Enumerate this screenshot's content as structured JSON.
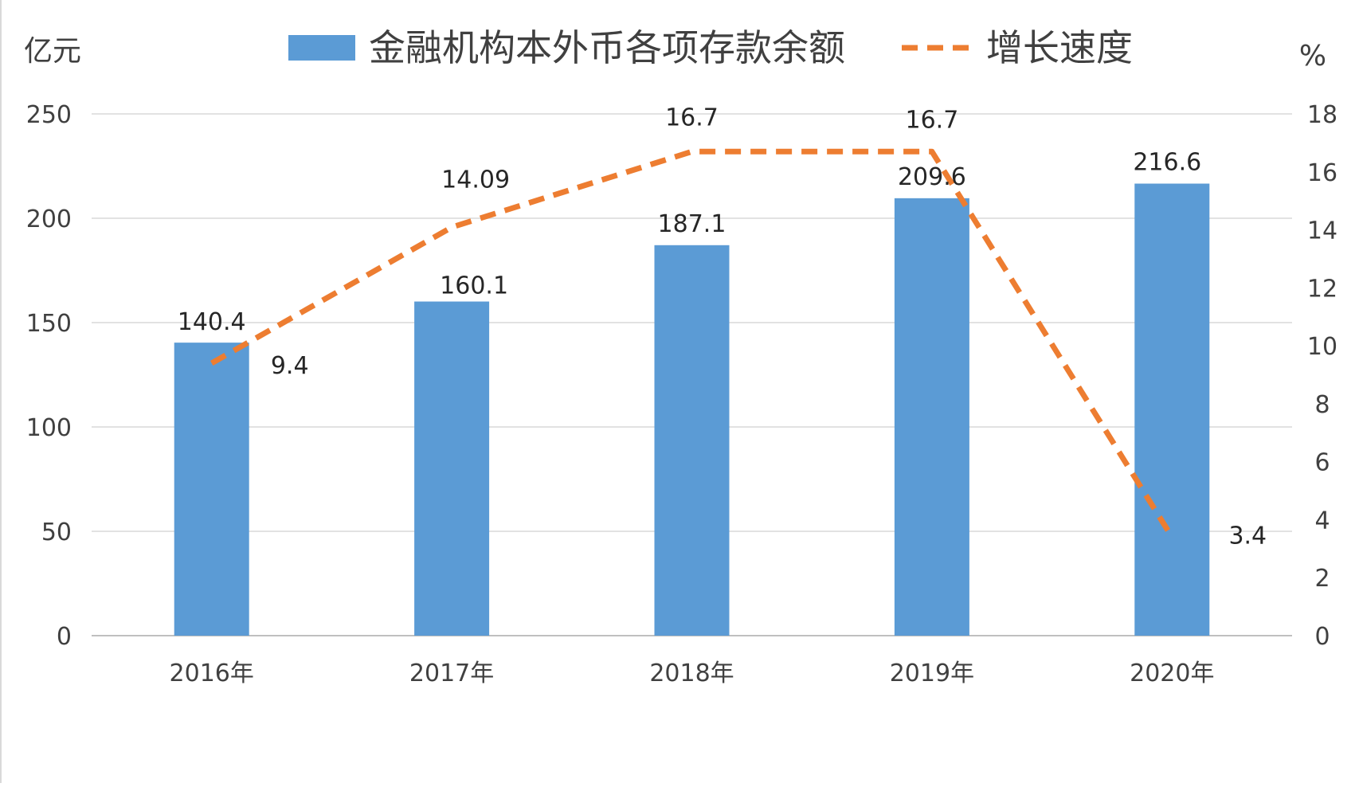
{
  "chart_data": {
    "type": "bar",
    "categories": [
      "2016年",
      "2017年",
      "2018年",
      "2019年",
      "2020年"
    ],
    "series": [
      {
        "name": "金融机构本外币各项存款余额",
        "type": "bar",
        "axis": "left",
        "values": [
          140.4,
          160.1,
          187.1,
          209.6,
          216.6
        ],
        "labels": [
          "140.4",
          "160.1",
          "187.1",
          "209.6",
          "216.6"
        ],
        "color": "#5b9bd5"
      },
      {
        "name": "增长速度",
        "type": "line",
        "style": "dashed",
        "axis": "right",
        "values": [
          9.4,
          14.09,
          16.7,
          16.7,
          3.4
        ],
        "labels": [
          "9.4",
          "14.09",
          "16.7",
          "16.7",
          "3.4"
        ],
        "color": "#ed7d31"
      }
    ],
    "y_left": {
      "unit": "亿元",
      "range": [
        0,
        250
      ],
      "ticks": [
        "0",
        "50",
        "100",
        "150",
        "200",
        "250"
      ]
    },
    "y_right": {
      "unit": "%",
      "range": [
        0,
        18
      ],
      "ticks": [
        "0",
        "2",
        "4",
        "6",
        "8",
        "10",
        "12",
        "14",
        "16",
        "18"
      ]
    },
    "grid": true,
    "legend_position": "top"
  }
}
